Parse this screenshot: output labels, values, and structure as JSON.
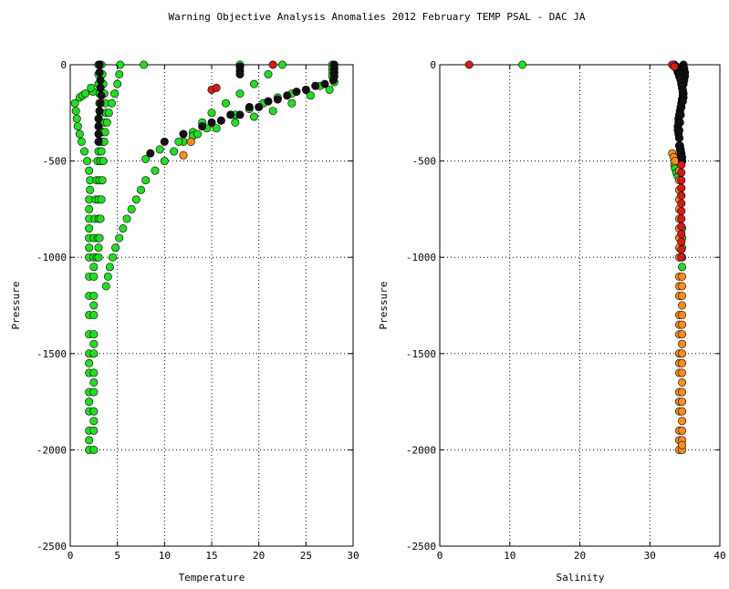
{
  "title": "Warning Objective Analysis Anomalies 2012 February TEMP PSAL - DAC JA",
  "colors": {
    "green": "#22dd22",
    "orange": "#ff8c1a",
    "red": "#d41b1b",
    "black": "#111111"
  },
  "chart_data": [
    {
      "type": "scatter",
      "xlabel": "Temperature",
      "ylabel": "Pressure",
      "xlim": [
        0,
        30
      ],
      "ylim": [
        -2500,
        0
      ],
      "xticks": [
        0,
        5,
        10,
        15,
        20,
        25,
        30
      ],
      "yticks": [
        0,
        -500,
        -1000,
        -1500,
        -2000,
        -2500
      ],
      "xtick_labels": [
        "0",
        "5",
        "10",
        "15",
        "20",
        "25",
        "30"
      ],
      "ytick_labels": [
        "0",
        "-500",
        "-1000",
        "-1500",
        "-2000",
        "-2500"
      ],
      "grid": true,
      "series": [
        {
          "color": "green",
          "profiles": [
            {
              "x": [
                0.5,
                0.6,
                0.7,
                0.8,
                1.0,
                1.2,
                1.5,
                1.8,
                2.0,
                2.1,
                2.1,
                2.0,
                2.0,
                2.0,
                2.0,
                2.0,
                2.0,
                2.0,
                2.0,
                2.0,
                2.0,
                2.0,
                2.0,
                2.0,
                2.0,
                2.0,
                2.0,
                2.0,
                2.0,
                2.0,
                2.0
              ],
              "y": [
                -200,
                -240,
                -280,
                -320,
                -360,
                -400,
                -450,
                -500,
                -550,
                -600,
                -650,
                -700,
                -750,
                -800,
                -850,
                -900,
                -950,
                -1000,
                -1100,
                -1200,
                -1300,
                -1400,
                -1500,
                -1550,
                -1600,
                -1700,
                -1750,
                -1800,
                -1900,
                -1950,
                -2000
              ]
            },
            {
              "x": [
                2.5,
                2.5,
                2.5,
                2.5,
                2.5,
                2.5,
                2.5,
                2.5,
                2.5,
                2.5,
                2.5,
                2.5,
                2.5,
                2.5,
                2.5
              ],
              "y": [
                -1050,
                -1100,
                -1200,
                -1250,
                -1300,
                -1400,
                -1450,
                -1500,
                -1600,
                -1650,
                -1700,
                -1800,
                -1850,
                -1900,
                -2000
              ]
            },
            {
              "x": [
                3.0,
                3.0,
                3.0,
                3.1,
                3.1,
                3.2,
                3.2,
                3.2,
                3.1,
                3.0,
                2.9,
                2.8,
                2.7,
                2.6,
                2.5,
                2.5
              ],
              "y": [
                0,
                -50,
                -100,
                -150,
                -200,
                -250,
                -300,
                -350,
                -400,
                -450,
                -500,
                -600,
                -700,
                -800,
                -900,
                -1000
              ]
            },
            {
              "x": [
                3.3,
                3.4,
                3.5,
                3.6,
                3.7,
                3.8,
                3.6,
                3.5,
                3.4,
                3.3,
                3.2,
                3.1,
                3.0,
                3.0,
                2.9,
                2.8
              ],
              "y": [
                0,
                -50,
                -100,
                -150,
                -200,
                -250,
                -300,
                -350,
                -400,
                -450,
                -500,
                -600,
                -700,
                -800,
                -900,
                -1000
              ]
            },
            {
              "x": [
                5.3,
                5.2,
                5.0,
                4.7,
                4.4,
                4.1,
                3.9,
                3.7,
                3.6,
                3.5,
                3.4,
                3.3,
                3.2,
                3.1,
                3.0,
                3.0
              ],
              "y": [
                0,
                -50,
                -100,
                -150,
                -200,
                -250,
                -300,
                -350,
                -400,
                -500,
                -600,
                -700,
                -800,
                -900,
                -950,
                -1000
              ]
            },
            {
              "x": [
                1.0,
                1.3,
                1.6
              ],
              "y": [
                -170,
                -160,
                -150
              ]
            },
            {
              "x": [
                2.4,
                2.2
              ],
              "y": [
                -140,
                -120
              ]
            },
            {
              "x": [
                7.8
              ],
              "y": [
                0
              ]
            },
            {
              "x": [
                18.0
              ],
              "y": [
                0
              ]
            },
            {
              "x": [
                22.5,
                21.0,
                19.5,
                18.0,
                16.5,
                15.0,
                14.0,
                13.0,
                12.0,
                11.0,
                10.0,
                9.0,
                8.0,
                7.5,
                7.0,
                6.5,
                6.0,
                5.6,
                5.2,
                4.8,
                4.5,
                4.2,
                4.0,
                3.8
              ],
              "y": [
                0,
                -50,
                -100,
                -150,
                -200,
                -250,
                -300,
                -350,
                -400,
                -450,
                -500,
                -550,
                -600,
                -650,
                -700,
                -750,
                -800,
                -850,
                -900,
                -950,
                -1000,
                -1050,
                -1100,
                -1150
              ]
            },
            {
              "x": [
                28.0,
                26.5,
                25.0,
                23.5,
                22.0,
                20.5,
                19.0,
                17.5,
                16.0,
                14.5,
                13.0
              ],
              "y": [
                -90,
                -110,
                -130,
                -150,
                -170,
                -200,
                -230,
                -260,
                -290,
                -330,
                -370
              ]
            },
            {
              "x": [
                27.5,
                25.5,
                23.5,
                21.5,
                19.5,
                17.5,
                15.5,
                13.5,
                11.5,
                9.5,
                8.0
              ],
              "y": [
                -130,
                -160,
                -200,
                -240,
                -270,
                -300,
                -330,
                -360,
                -400,
                -440,
                -490
              ]
            },
            {
              "x": [
                27.8,
                27.8,
                27.8,
                27.8
              ],
              "y": [
                0,
                -20,
                -40,
                -60
              ]
            }
          ]
        },
        {
          "color": "black",
          "profiles": [
            {
              "x": [
                3.1,
                3.1,
                3.2,
                3.2,
                3.3,
                3.2,
                3.1,
                3.0,
                3.0,
                3.0,
                3.0
              ],
              "y": [
                0,
                -40,
                -80,
                -120,
                -160,
                -200,
                -240,
                -280,
                -320,
                -360,
                -400
              ]
            },
            {
              "x": [
                28.0,
                28.0,
                28.0,
                28.0,
                27.9
              ],
              "y": [
                0,
                -20,
                -40,
                -60,
                -80
              ]
            },
            {
              "x": [
                18.0,
                18.0,
                18.0
              ],
              "y": [
                -10,
                -30,
                -50
              ]
            },
            {
              "x": [
                26.0,
                24.0,
                22.0,
                20.0,
                18.0,
                16.0,
                14.0,
                12.0,
                10.0,
                8.5
              ],
              "y": [
                -110,
                -140,
                -180,
                -220,
                -260,
                -290,
                -320,
                -360,
                -400,
                -460
              ]
            },
            {
              "x": [
                27.0,
                25.0,
                23.0,
                21.0,
                19.0,
                17.0,
                15.0
              ],
              "y": [
                -100,
                -130,
                -160,
                -190,
                -220,
                -260,
                -300
              ]
            }
          ]
        },
        {
          "color": "orange",
          "profiles": [
            {
              "x": [
                12.8
              ],
              "y": [
                -400
              ]
            },
            {
              "x": [
                12.0
              ],
              "y": [
                -470
              ]
            }
          ]
        },
        {
          "color": "red",
          "profiles": [
            {
              "x": [
                15.0,
                15.5
              ],
              "y": [
                -130,
                -120
              ]
            },
            {
              "x": [
                21.5
              ],
              "y": [
                0
              ]
            }
          ]
        }
      ]
    },
    {
      "type": "scatter",
      "xlabel": "Salinity",
      "ylabel": "Pressure",
      "xlim": [
        0,
        40
      ],
      "ylim": [
        -2500,
        0
      ],
      "xticks": [
        0,
        10,
        20,
        30,
        40
      ],
      "yticks": [
        0,
        -500,
        -1000,
        -1500,
        -2000,
        -2500
      ],
      "xtick_labels": [
        "0",
        "10",
        "20",
        "30",
        "40"
      ],
      "ytick_labels": [
        "0",
        "-500",
        "-1000",
        "-1500",
        "-2000",
        "-2500"
      ],
      "grid": true,
      "series": [
        {
          "color": "green",
          "profiles": [
            {
              "x": [
                11.8
              ],
              "y": [
                0
              ]
            },
            {
              "x": [
                33.5,
                33.6,
                33.8,
                34.0
              ],
              "y": [
                -520,
                -540,
                -560,
                -580
              ]
            },
            {
              "x": [
                34.6,
                34.6,
                34.6,
                34.6,
                34.6
              ],
              "y": [
                -850,
                -900,
                -950,
                -1000,
                -1050
              ]
            }
          ]
        },
        {
          "color": "black",
          "profiles": [
            {
              "x": [
                33.5,
                33.8,
                34.0,
                34.2,
                34.4,
                34.5,
                34.6,
                34.7,
                34.7,
                34.6,
                34.5,
                34.4,
                34.3,
                34.2,
                34.1,
                34.1,
                34.0,
                34.0,
                34.1,
                34.2
              ],
              "y": [
                0,
                -20,
                -40,
                -60,
                -80,
                -100,
                -120,
                -140,
                -160,
                -180,
                -200,
                -220,
                -240,
                -260,
                -280,
                -300,
                -320,
                -340,
                -360,
                -380
              ]
            },
            {
              "x": [
                34.8,
                34.9,
                35.0,
                35.0,
                34.9,
                34.8,
                34.7,
                34.6,
                34.5,
                34.4,
                34.3,
                34.2,
                34.2,
                34.3,
                34.4,
                34.5,
                34.6,
                34.6
              ],
              "y": [
                0,
                -20,
                -40,
                -60,
                -80,
                -100,
                -140,
                -180,
                -220,
                -260,
                -300,
                -340,
                -380,
                -420,
                -440,
                -460,
                -480,
                -500
              ]
            },
            {
              "x": [
                33.8,
                34.0,
                34.2,
                34.4,
                34.5,
                34.6,
                34.7,
                34.8,
                34.8,
                34.7
              ],
              "y": [
                -10,
                -30,
                -50,
                -70,
                -90,
                -110,
                -130,
                -150,
                -170,
                -190
              ]
            },
            {
              "x": [
                34.2,
                34.3,
                34.4,
                34.5
              ],
              "y": [
                -420,
                -440,
                -460,
                -480
              ]
            }
          ]
        },
        {
          "color": "orange",
          "profiles": [
            {
              "x": [
                33.2,
                33.4,
                33.6
              ],
              "y": [
                -460,
                -480,
                -500
              ]
            },
            {
              "x": [
                34.2,
                34.2,
                34.2,
                34.2,
                34.2,
                34.2,
                34.2,
                34.2,
                34.2,
                34.2,
                34.2,
                34.2,
                34.2,
                34.2,
                34.2,
                34.2,
                34.2,
                34.2,
                34.2,
                34.2,
                34.2,
                34.2,
                34.2,
                34.2,
                34.2
              ],
              "y": [
                -550,
                -600,
                -650,
                -700,
                -750,
                -800,
                -850,
                -900,
                -950,
                -1000,
                -1100,
                -1150,
                -1200,
                -1300,
                -1350,
                -1400,
                -1500,
                -1550,
                -1600,
                -1700,
                -1750,
                -1800,
                -1900,
                -1950,
                -2000
              ]
            },
            {
              "x": [
                34.6,
                34.6,
                34.6,
                34.6,
                34.6,
                34.6,
                34.6,
                34.6,
                34.6,
                34.6,
                34.6,
                34.6,
                34.6,
                34.6,
                34.6,
                34.6,
                34.6,
                34.6,
                34.6,
                34.6
              ],
              "y": [
                -1100,
                -1150,
                -1200,
                -1250,
                -1300,
                -1350,
                -1400,
                -1450,
                -1500,
                -1550,
                -1600,
                -1650,
                -1700,
                -1750,
                -1800,
                -1850,
                -1900,
                -1950,
                -2000,
                -1975
              ]
            }
          ]
        },
        {
          "color": "red",
          "profiles": [
            {
              "x": [
                4.2
              ],
              "y": [
                0
              ]
            },
            {
              "x": [
                33.2,
                33.5
              ],
              "y": [
                0,
                -10
              ]
            },
            {
              "x": [
                34.5,
                34.5,
                34.5,
                34.5,
                34.5,
                34.5,
                34.5,
                34.5,
                34.5,
                34.5,
                34.5,
                34.5,
                34.5
              ],
              "y": [
                -520,
                -560,
                -600,
                -640,
                -680,
                -720,
                -760,
                -800,
                -840,
                -880,
                -920,
                -960,
                -1000
              ]
            }
          ]
        }
      ]
    }
  ]
}
